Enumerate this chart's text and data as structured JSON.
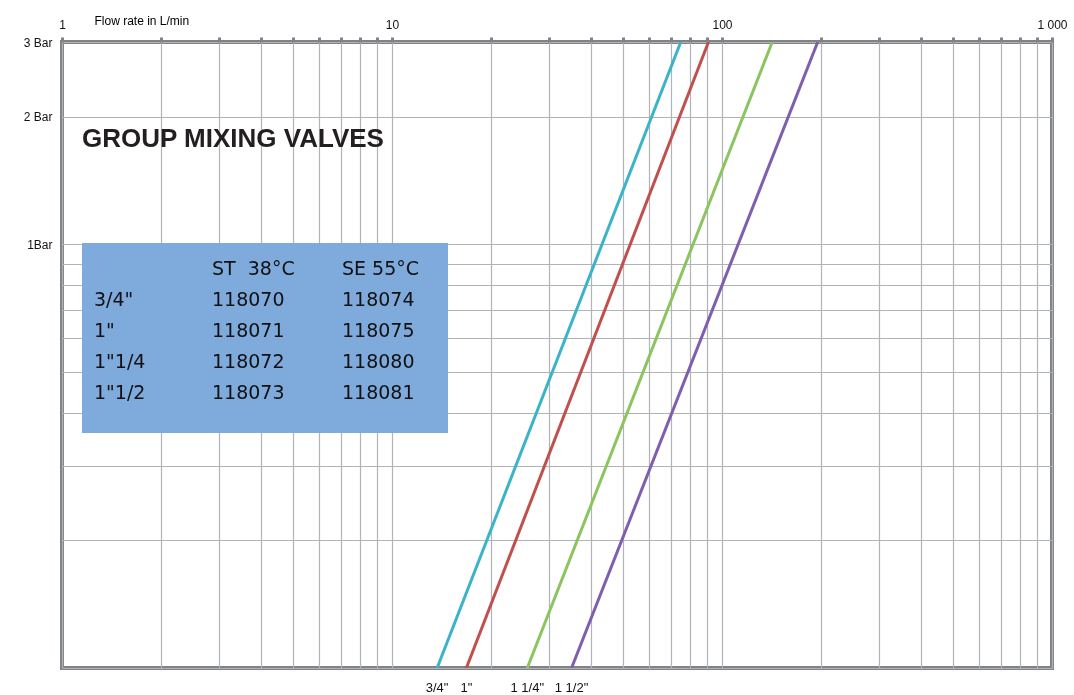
{
  "chart_data": {
    "type": "line",
    "title": "GROUP MIXING VALVES",
    "xlabel": "Flow rate in L/min",
    "log": "xy",
    "grid": true,
    "xlim": [
      1,
      1000
    ],
    "xticks": [
      1,
      {
        "value": 2,
        "label": null
      },
      {
        "value": 3,
        "label": null
      },
      {
        "value": 4,
        "label": null
      },
      {
        "value": 5,
        "label": null
      },
      {
        "value": 6,
        "label": null
      },
      {
        "value": 7,
        "label": null
      },
      {
        "value": 8,
        "label": null
      },
      {
        "value": 9,
        "label": null
      },
      10,
      {
        "value": 20,
        "label": null
      },
      {
        "value": 30,
        "label": null
      },
      {
        "value": 40,
        "label": null
      },
      {
        "value": 50,
        "label": null
      },
      {
        "value": 60,
        "label": null
      },
      {
        "value": 70,
        "label": null
      },
      {
        "value": 80,
        "label": null
      },
      {
        "value": 90,
        "label": null
      },
      100,
      {
        "value": 200,
        "label": null
      },
      {
        "value": 300,
        "label": null
      },
      {
        "value": 400,
        "label": null
      },
      {
        "value": 500,
        "label": null
      },
      {
        "value": 600,
        "label": null
      },
      {
        "value": 700,
        "label": null
      },
      {
        "value": 800,
        "label": null
      },
      {
        "value": 900,
        "label": null
      },
      {
        "value": 1000,
        "label": "1 000"
      }
    ],
    "ylim": [
      0.1,
      3
    ],
    "yticks": [
      {
        "value": 0.1,
        "label": null
      },
      {
        "value": 0.2,
        "label": null
      },
      {
        "value": 0.3,
        "label": null
      },
      {
        "value": 0.4,
        "label": null
      },
      {
        "value": 0.5,
        "label": null
      },
      {
        "value": 0.6,
        "label": null
      },
      {
        "value": 0.7,
        "label": null
      },
      {
        "value": 0.8,
        "label": null
      },
      {
        "value": 0.9,
        "label": null
      },
      {
        "value": 1,
        "label": "1Bar"
      },
      {
        "value": 2,
        "label": "2 Bar"
      },
      {
        "value": 3,
        "label": "3 Bar"
      }
    ],
    "series": [
      {
        "name": "3/4\"",
        "color": "#3bb3c8",
        "x": [
          13.7,
          75
        ],
        "values": [
          0.1,
          3
        ]
      },
      {
        "name": "1\"",
        "color": "#c0504d",
        "x": [
          16.8,
          91
        ],
        "values": [
          0.1,
          3
        ]
      },
      {
        "name": "1 1/4\"",
        "color": "#8cc460",
        "x": [
          25.7,
          142
        ],
        "values": [
          0.1,
          3
        ]
      },
      {
        "name": "1 1/2\"",
        "color": "#7f5fad",
        "x": [
          35,
          195
        ],
        "values": [
          0.1,
          3
        ]
      }
    ],
    "annotations": [
      "ST  38°C",
      "SE 55°C",
      "3/4\"",
      "118070",
      "118074",
      "1\"",
      "118071",
      "118075",
      "1\"1/4",
      "118072",
      "118080",
      "1\"1/2",
      "118073",
      "118081"
    ]
  }
}
